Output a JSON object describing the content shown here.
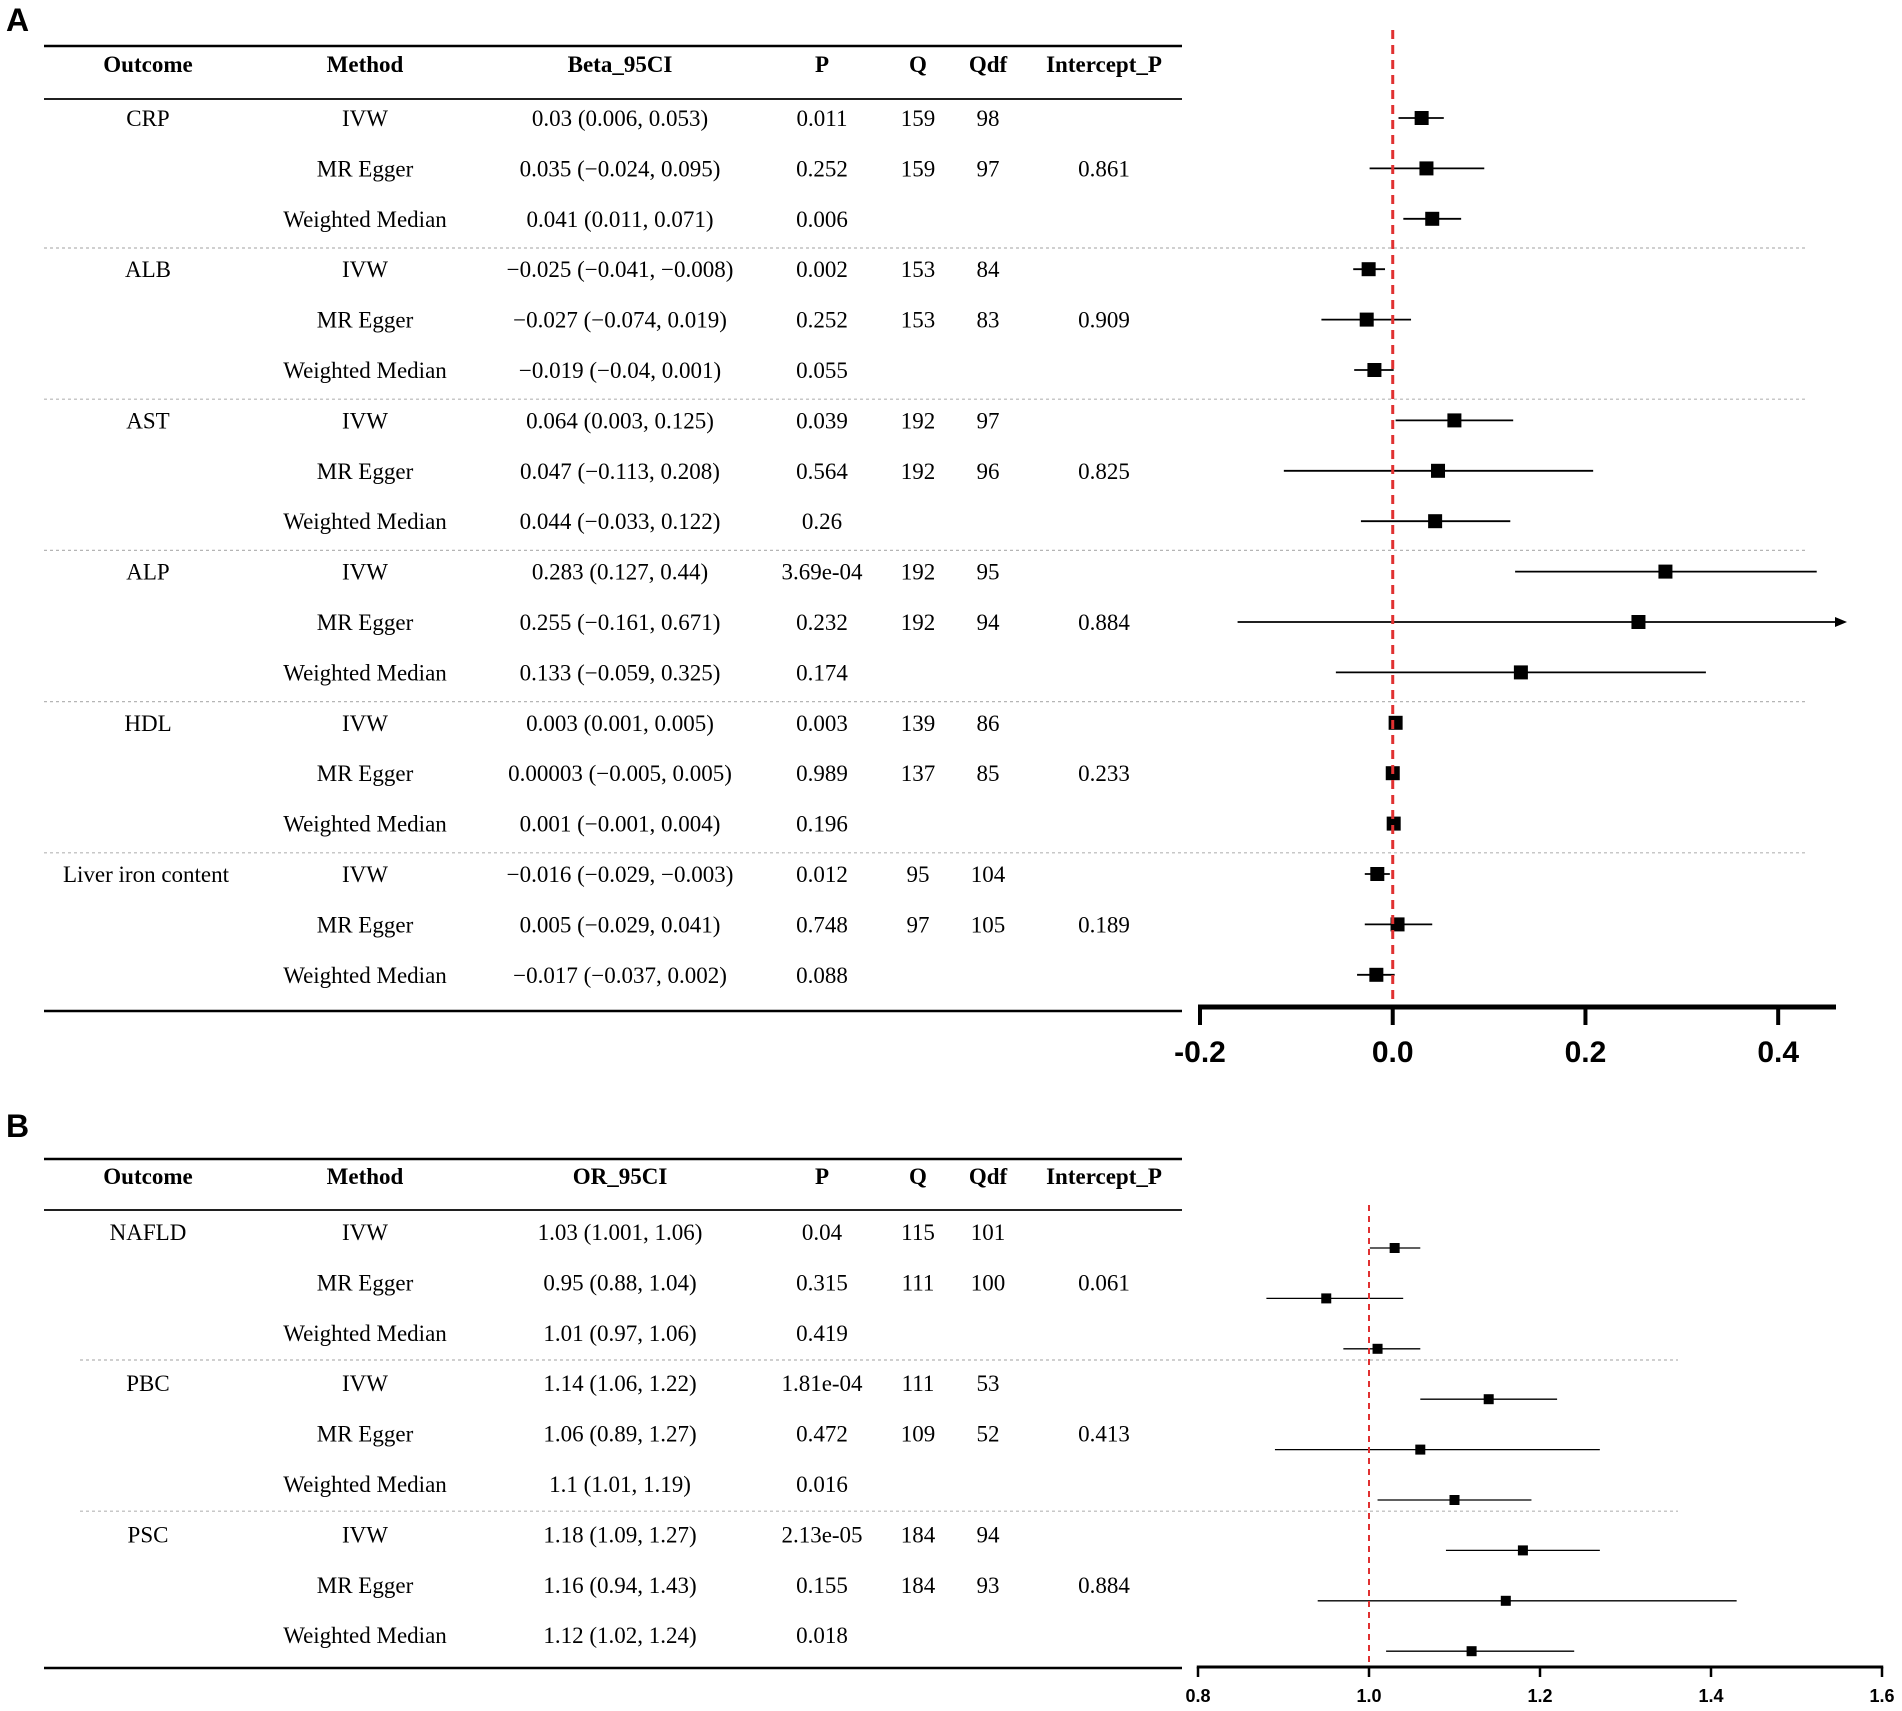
{
  "panels": [
    {
      "label": "A",
      "headers": [
        "Outcome",
        "Method",
        "Beta_95CI",
        "P",
        "Q",
        "Qdf",
        "Intercept_P"
      ],
      "groups": [
        {
          "outcome": "CRP",
          "rows": [
            {
              "method": "IVW",
              "est_text": "0.03 (0.006, 0.053)",
              "p": "0.011",
              "q": "159",
              "qdf": "98",
              "intercept_p": ""
            },
            {
              "method": "MR Egger",
              "est_text": "0.035 (−0.024, 0.095)",
              "p": "0.252",
              "q": "159",
              "qdf": "97",
              "intercept_p": "0.861"
            },
            {
              "method": "Weighted Median",
              "est_text": "0.041 (0.011, 0.071)",
              "p": "0.006",
              "q": "",
              "qdf": "",
              "intercept_p": ""
            }
          ]
        },
        {
          "outcome": "ALB",
          "rows": [
            {
              "method": "IVW",
              "est_text": "−0.025 (−0.041, −0.008)",
              "p": "0.002",
              "q": "153",
              "qdf": "84",
              "intercept_p": ""
            },
            {
              "method": "MR Egger",
              "est_text": "−0.027 (−0.074, 0.019)",
              "p": "0.252",
              "q": "153",
              "qdf": "83",
              "intercept_p": "0.909"
            },
            {
              "method": "Weighted Median",
              "est_text": "−0.019 (−0.04, 0.001)",
              "p": "0.055",
              "q": "",
              "qdf": "",
              "intercept_p": ""
            }
          ]
        },
        {
          "outcome": "AST",
          "rows": [
            {
              "method": "IVW",
              "est_text": "0.064 (0.003, 0.125)",
              "p": "0.039",
              "q": "192",
              "qdf": "97",
              "intercept_p": ""
            },
            {
              "method": "MR Egger",
              "est_text": "0.047 (−0.113, 0.208)",
              "p": "0.564",
              "q": "192",
              "qdf": "96",
              "intercept_p": "0.825"
            },
            {
              "method": "Weighted Median",
              "est_text": "0.044 (−0.033, 0.122)",
              "p": "0.26",
              "q": "",
              "qdf": "",
              "intercept_p": ""
            }
          ]
        },
        {
          "outcome": "ALP",
          "rows": [
            {
              "method": "IVW",
              "est_text": "0.283 (0.127, 0.44)",
              "p": "3.69e-04",
              "q": "192",
              "qdf": "95",
              "intercept_p": ""
            },
            {
              "method": "MR Egger",
              "est_text": "0.255 (−0.161, 0.671)",
              "p": "0.232",
              "q": "192",
              "qdf": "94",
              "intercept_p": "0.884"
            },
            {
              "method": "Weighted Median",
              "est_text": "0.133 (−0.059, 0.325)",
              "p": "0.174",
              "q": "",
              "qdf": "",
              "intercept_p": ""
            }
          ]
        },
        {
          "outcome": "HDL",
          "rows": [
            {
              "method": "IVW",
              "est_text": "0.003 (0.001, 0.005)",
              "p": "0.003",
              "q": "139",
              "qdf": "86",
              "intercept_p": ""
            },
            {
              "method": "MR Egger",
              "est_text": "0.00003 (−0.005, 0.005)",
              "p": "0.989",
              "q": "137",
              "qdf": "85",
              "intercept_p": "0.233"
            },
            {
              "method": "Weighted Median",
              "est_text": "0.001 (−0.001, 0.004)",
              "p": "0.196",
              "q": "",
              "qdf": "",
              "intercept_p": ""
            }
          ]
        },
        {
          "outcome": "Liver iron content",
          "rows": [
            {
              "method": "IVW",
              "est_text": "−0.016 (−0.029, −0.003)",
              "p": "0.012",
              "q": "95",
              "qdf": "104",
              "intercept_p": ""
            },
            {
              "method": "MR Egger",
              "est_text": "0.005 (−0.029, 0.041)",
              "p": "0.748",
              "q": "97",
              "qdf": "105",
              "intercept_p": "0.189"
            },
            {
              "method": "Weighted Median",
              "est_text": "−0.017 (−0.037, 0.002)",
              "p": "0.088",
              "q": "",
              "qdf": "",
              "intercept_p": ""
            }
          ]
        }
      ]
    },
    {
      "label": "B",
      "headers": [
        "Outcome",
        "Method",
        "OR_95CI",
        "P",
        "Q",
        "Qdf",
        "Intercept_P"
      ],
      "groups": [
        {
          "outcome": "NAFLD",
          "rows": [
            {
              "method": "IVW",
              "est_text": "1.03 (1.001, 1.06)",
              "p": "0.04",
              "q": "115",
              "qdf": "101",
              "intercept_p": ""
            },
            {
              "method": "MR Egger",
              "est_text": "0.95 (0.88, 1.04)",
              "p": "0.315",
              "q": "111",
              "qdf": "100",
              "intercept_p": "0.061"
            },
            {
              "method": "Weighted Median",
              "est_text": "1.01 (0.97, 1.06)",
              "p": "0.419",
              "q": "",
              "qdf": "",
              "intercept_p": ""
            }
          ]
        },
        {
          "outcome": "PBC",
          "rows": [
            {
              "method": "IVW",
              "est_text": "1.14 (1.06, 1.22)",
              "p": "1.81e-04",
              "q": "111",
              "qdf": "53",
              "intercept_p": ""
            },
            {
              "method": "MR Egger",
              "est_text": "1.06 (0.89, 1.27)",
              "p": "0.472",
              "q": "109",
              "qdf": "52",
              "intercept_p": "0.413"
            },
            {
              "method": "Weighted Median",
              "est_text": "1.1 (1.01, 1.19)",
              "p": "0.016",
              "q": "",
              "qdf": "",
              "intercept_p": ""
            }
          ]
        },
        {
          "outcome": "PSC",
          "rows": [
            {
              "method": "IVW",
              "est_text": "1.18 (1.09, 1.27)",
              "p": "2.13e-05",
              "q": "184",
              "qdf": "94",
              "intercept_p": ""
            },
            {
              "method": "MR Egger",
              "est_text": "1.16 (0.94, 1.43)",
              "p": "0.155",
              "q": "184",
              "qdf": "93",
              "intercept_p": "0.884"
            },
            {
              "method": "Weighted Median",
              "est_text": "1.12 (1.02, 1.24)",
              "p": "0.018",
              "q": "",
              "qdf": "",
              "intercept_p": ""
            }
          ]
        }
      ]
    }
  ],
  "chart_data": [
    {
      "type": "forest",
      "panel": "A",
      "title": "",
      "xlabel": "",
      "ylabel": "",
      "reference_line": 0,
      "reference_color": "#e03131",
      "xlim": [
        -0.2,
        0.46
      ],
      "xticks": [
        -0.2,
        0.0,
        0.2,
        0.4
      ],
      "xtick_labels": [
        "-0.2",
        "0.0",
        "0.2",
        "0.4"
      ],
      "rows": [
        {
          "outcome": "CRP",
          "method": "IVW",
          "estimate": 0.03,
          "lower": 0.006,
          "upper": 0.053
        },
        {
          "outcome": "CRP",
          "method": "MR Egger",
          "estimate": 0.035,
          "lower": -0.024,
          "upper": 0.095
        },
        {
          "outcome": "CRP",
          "method": "Weighted Median",
          "estimate": 0.041,
          "lower": 0.011,
          "upper": 0.071
        },
        {
          "outcome": "ALB",
          "method": "IVW",
          "estimate": -0.025,
          "lower": -0.041,
          "upper": -0.008
        },
        {
          "outcome": "ALB",
          "method": "MR Egger",
          "estimate": -0.027,
          "lower": -0.074,
          "upper": 0.019
        },
        {
          "outcome": "ALB",
          "method": "Weighted Median",
          "estimate": -0.019,
          "lower": -0.04,
          "upper": 0.001
        },
        {
          "outcome": "AST",
          "method": "IVW",
          "estimate": 0.064,
          "lower": 0.003,
          "upper": 0.125
        },
        {
          "outcome": "AST",
          "method": "MR Egger",
          "estimate": 0.047,
          "lower": -0.113,
          "upper": 0.208
        },
        {
          "outcome": "AST",
          "method": "Weighted Median",
          "estimate": 0.044,
          "lower": -0.033,
          "upper": 0.122
        },
        {
          "outcome": "ALP",
          "method": "IVW",
          "estimate": 0.283,
          "lower": 0.127,
          "upper": 0.44
        },
        {
          "outcome": "ALP",
          "method": "MR Egger",
          "estimate": 0.255,
          "lower": -0.161,
          "upper": 0.671
        },
        {
          "outcome": "ALP",
          "method": "Weighted Median",
          "estimate": 0.133,
          "lower": -0.059,
          "upper": 0.325
        },
        {
          "outcome": "HDL",
          "method": "IVW",
          "estimate": 0.003,
          "lower": 0.001,
          "upper": 0.005
        },
        {
          "outcome": "HDL",
          "method": "MR Egger",
          "estimate": 3e-05,
          "lower": -0.005,
          "upper": 0.005
        },
        {
          "outcome": "HDL",
          "method": "Weighted Median",
          "estimate": 0.001,
          "lower": -0.001,
          "upper": 0.004
        },
        {
          "outcome": "Liver iron content",
          "method": "IVW",
          "estimate": -0.016,
          "lower": -0.029,
          "upper": -0.003
        },
        {
          "outcome": "Liver iron content",
          "method": "MR Egger",
          "estimate": 0.005,
          "lower": -0.029,
          "upper": 0.041
        },
        {
          "outcome": "Liver iron content",
          "method": "Weighted Median",
          "estimate": -0.017,
          "lower": -0.037,
          "upper": 0.002
        }
      ]
    },
    {
      "type": "forest",
      "panel": "B",
      "title": "",
      "xlabel": "",
      "ylabel": "",
      "reference_line": 1,
      "reference_color": "#e03131",
      "xlim": [
        0.8,
        1.6
      ],
      "xticks": [
        0.8,
        1.0,
        1.2,
        1.4,
        1.6
      ],
      "xtick_labels": [
        "0.8",
        "1.0",
        "1.2",
        "1.4",
        "1.6"
      ],
      "rows": [
        {
          "outcome": "NAFLD",
          "method": "IVW",
          "estimate": 1.03,
          "lower": 1.001,
          "upper": 1.06
        },
        {
          "outcome": "NAFLD",
          "method": "MR Egger",
          "estimate": 0.95,
          "lower": 0.88,
          "upper": 1.04
        },
        {
          "outcome": "NAFLD",
          "method": "Weighted Median",
          "estimate": 1.01,
          "lower": 0.97,
          "upper": 1.06
        },
        {
          "outcome": "PBC",
          "method": "IVW",
          "estimate": 1.14,
          "lower": 1.06,
          "upper": 1.22
        },
        {
          "outcome": "PBC",
          "method": "MR Egger",
          "estimate": 1.06,
          "lower": 0.89,
          "upper": 1.27
        },
        {
          "outcome": "PBC",
          "method": "Weighted Median",
          "estimate": 1.1,
          "lower": 1.01,
          "upper": 1.19
        },
        {
          "outcome": "PSC",
          "method": "IVW",
          "estimate": 1.18,
          "lower": 1.09,
          "upper": 1.27
        },
        {
          "outcome": "PSC",
          "method": "MR Egger",
          "estimate": 1.16,
          "lower": 0.94,
          "upper": 1.43
        },
        {
          "outcome": "PSC",
          "method": "Weighted Median",
          "estimate": 1.12,
          "lower": 1.02,
          "upper": 1.24
        }
      ]
    }
  ]
}
